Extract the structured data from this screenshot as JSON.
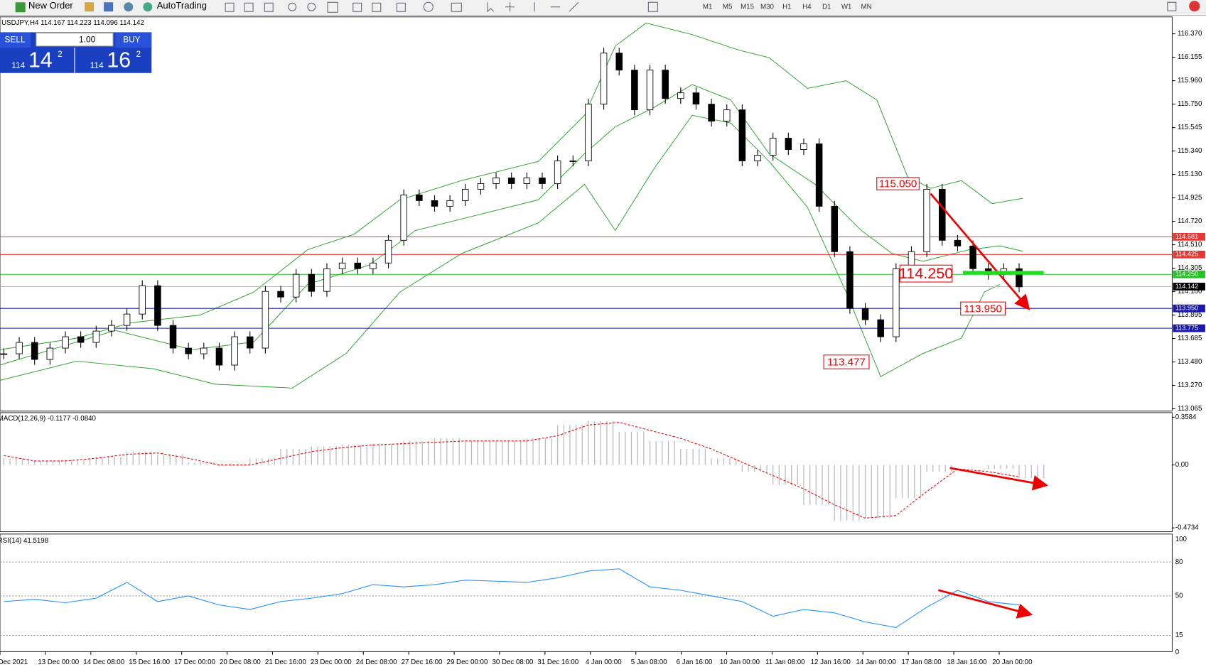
{
  "toolbar": {
    "new_order": "New Order",
    "autotrading": "AutoTrading",
    "timeframes": [
      "M1",
      "M5",
      "M15",
      "M30",
      "H1",
      "H4",
      "D1",
      "W1",
      "MN"
    ]
  },
  "one_click": {
    "sell": "SELL",
    "buy": "BUY",
    "volume": "1.00",
    "bid_prefix": "114",
    "bid_big": "14",
    "bid_sup": "2",
    "ask_prefix": "114",
    "ask_big": "16",
    "ask_sup": "2"
  },
  "main_chart": {
    "header": "USDJPY,H4  114.167 114.223 114.096 114.142",
    "price_ticks": [
      "116.370",
      "116.155",
      "115.960",
      "115.750",
      "115.545",
      "115.340",
      "115.130",
      "114.925",
      "114.720",
      "114.510",
      "114.305",
      "114.100",
      "113.895",
      "113.685",
      "113.480",
      "113.270",
      "113.065"
    ],
    "levels": [
      {
        "label": "114.581",
        "color": "#e53935"
      },
      {
        "label": "114.425",
        "color": "#e53935"
      },
      {
        "label": "114.250",
        "color": "#22c322"
      },
      {
        "label": "114.142",
        "color": "#000000"
      },
      {
        "label": "113.950",
        "color": "#1a1ab0"
      },
      {
        "label": "113.775",
        "color": "#1a1ab0"
      }
    ],
    "annotations": [
      "115.050",
      "114.250",
      "113.950",
      "113.477"
    ],
    "time_labels": [
      "Dec 2021",
      "13 Dec 00:00",
      "14 Dec 08:00",
      "15 Dec 16:00",
      "17 Dec 00:00",
      "20 Dec 08:00",
      "21 Dec 16:00",
      "23 Dec 00:00",
      "24 Dec 08:00",
      "27 Dec 16:00",
      "29 Dec 00:00",
      "30 Dec 08:00",
      "31 Dec 16:00",
      "4 Jan 00:00",
      "5 Jan 08:00",
      "6 Jan 16:00",
      "10 Jan 00:00",
      "11 Jan 08:00",
      "12 Jan 16:00",
      "14 Jan 00:00",
      "17 Jan 08:00",
      "18 Jan 16:00",
      "20 Jan 00:00"
    ],
    "closes": [
      113.55,
      113.65,
      113.5,
      113.6,
      113.7,
      113.65,
      113.75,
      113.8,
      113.9,
      114.15,
      113.8,
      113.6,
      113.55,
      113.6,
      113.45,
      113.7,
      113.6,
      114.1,
      114.05,
      114.25,
      114.1,
      114.3,
      114.35,
      114.3,
      114.35,
      114.55,
      114.95,
      114.9,
      114.85,
      114.9,
      115.0,
      115.05,
      115.1,
      115.05,
      115.1,
      115.05,
      115.25,
      115.25,
      115.75,
      116.2,
      116.05,
      115.7,
      116.05,
      115.8,
      115.85,
      115.75,
      115.6,
      115.7,
      115.25,
      115.3,
      115.45,
      115.35,
      115.4,
      114.85,
      114.45,
      113.95,
      113.85,
      113.7,
      114.3,
      114.45,
      115.0,
      114.55,
      114.5,
      114.3,
      114.25,
      114.3,
      114.14
    ]
  },
  "macd": {
    "label": "MACD(12,26,9) -0.1177 -0.0840",
    "ticks": [
      "0.3584",
      "0.00",
      "-0.4734"
    ],
    "histogram": [
      0.05,
      0.03,
      0.04,
      0.06,
      0.1,
      0.08,
      0.02,
      -0.01,
      0.05,
      0.12,
      0.14,
      0.15,
      0.16,
      0.18,
      0.2,
      0.18,
      0.18,
      0.2,
      0.3,
      0.33,
      0.25,
      0.18,
      0.12,
      0.05,
      -0.05,
      -0.15,
      -0.3,
      -0.42,
      -0.4,
      -0.25,
      -0.05,
      0.0,
      -0.03,
      -0.1
    ],
    "signal": [
      0.07,
      0.03,
      0.03,
      0.05,
      0.08,
      0.09,
      0.05,
      0.0,
      0.0,
      0.05,
      0.1,
      0.13,
      0.15,
      0.16,
      0.17,
      0.18,
      0.18,
      0.18,
      0.22,
      0.3,
      0.32,
      0.26,
      0.2,
      0.12,
      0.02,
      -0.08,
      -0.18,
      -0.3,
      -0.4,
      -0.38,
      -0.2,
      -0.03,
      -0.05,
      -0.09
    ]
  },
  "rsi": {
    "label": "RSI(14) 41.5198",
    "ticks": [
      "100",
      "80",
      "50",
      "15",
      "0"
    ],
    "values": [
      45,
      47,
      44,
      48,
      62,
      45,
      50,
      42,
      38,
      45,
      48,
      52,
      60,
      58,
      60,
      64,
      63,
      62,
      66,
      72,
      74,
      58,
      55,
      50,
      45,
      32,
      38,
      35,
      27,
      22,
      40,
      55,
      45,
      42
    ]
  }
}
